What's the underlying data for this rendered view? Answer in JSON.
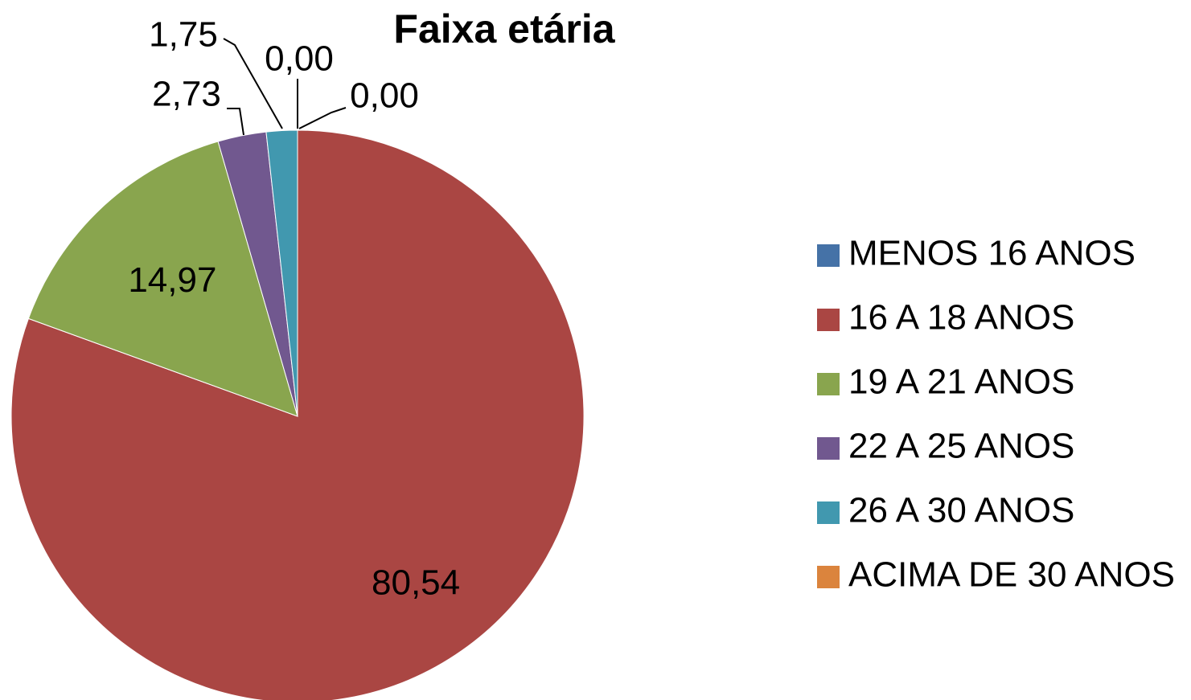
{
  "chart_data": {
    "type": "pie",
    "title": "Faixa etária",
    "categories": [
      "MENOS 16 ANOS",
      "16 A 18 ANOS",
      "19 A 21 ANOS",
      "22 A 25 ANOS",
      "26 A 30 ANOS",
      "ACIMA DE 30 ANOS"
    ],
    "values": [
      0,
      80.54,
      14.97,
      2.73,
      1.75,
      0
    ],
    "value_labels": [
      "0,00",
      "80,54",
      "14,97",
      "2,73",
      "1,75",
      "0,00"
    ],
    "colors": [
      "#4572a7",
      "#aa4643",
      "#89a54e",
      "#71588f",
      "#4198af",
      "#db843d"
    ],
    "legend": "right"
  }
}
